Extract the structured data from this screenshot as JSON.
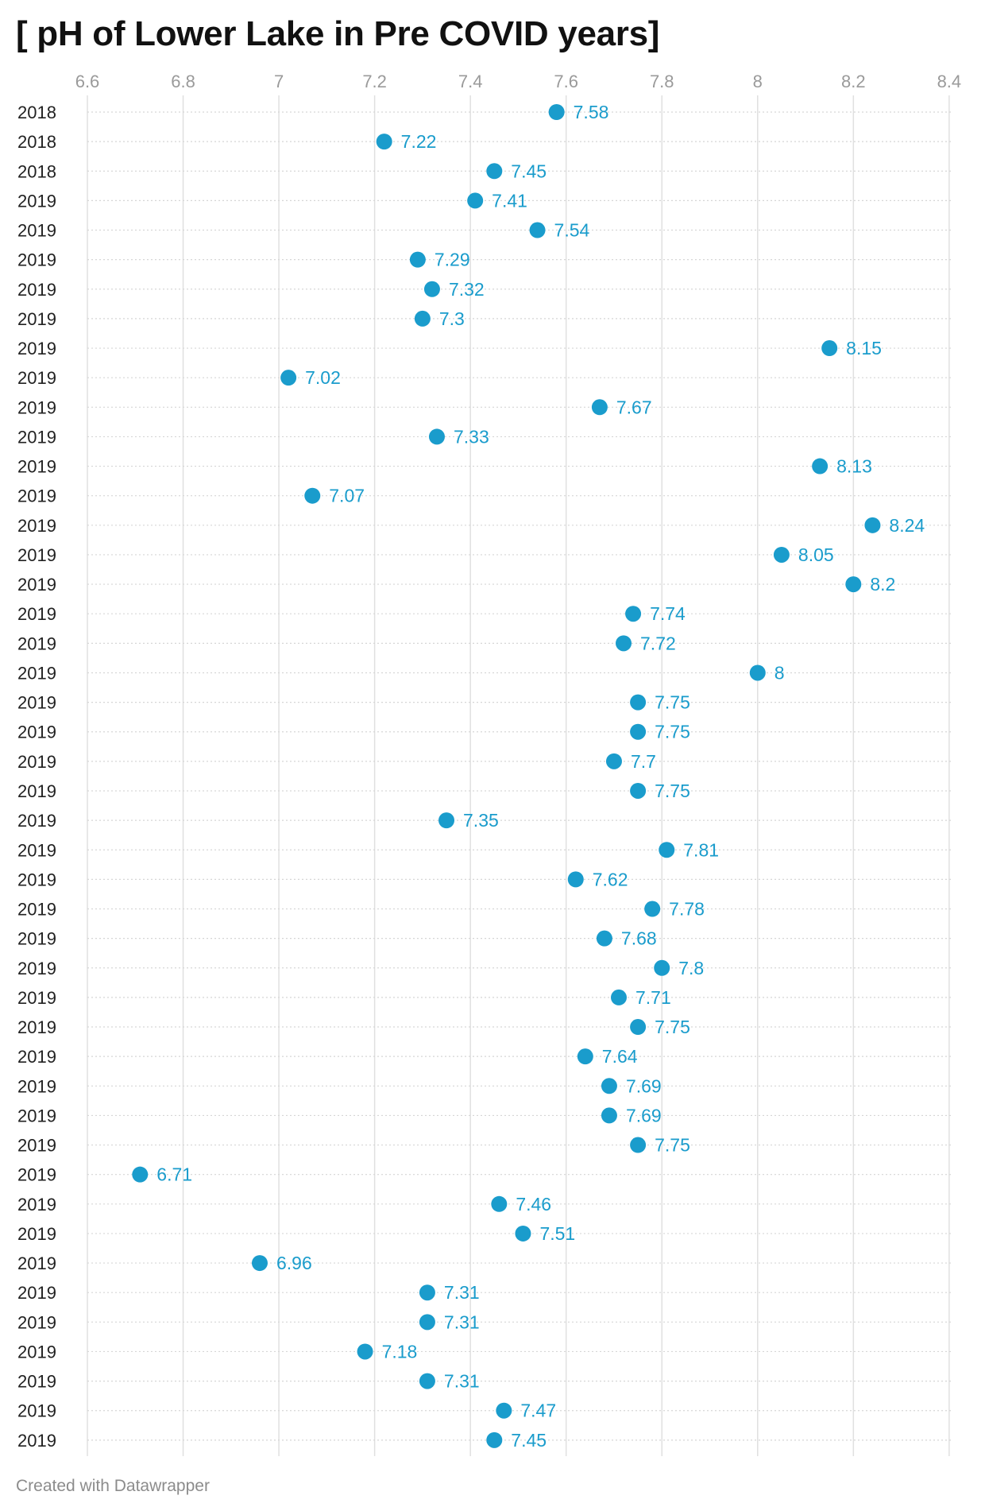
{
  "chart_data": {
    "type": "scatter",
    "title": "[ pH of Lower Lake in Pre COVID years]",
    "x_ticks": [
      6.6,
      6.8,
      7,
      7.2,
      7.4,
      7.6,
      7.8,
      8,
      8.2,
      8.4
    ],
    "x_tick_labels": [
      "6.6",
      "6.8",
      "7",
      "7.2",
      "7.4",
      "7.6",
      "7.8",
      "8",
      "8.2",
      "8.4"
    ],
    "xlim": [
      6.6,
      8.4
    ],
    "grid": true,
    "rows": [
      {
        "label": "2018",
        "value": 7.58,
        "value_label": "7.58"
      },
      {
        "label": "2018",
        "value": 7.22,
        "value_label": "7.22"
      },
      {
        "label": "2018",
        "value": 7.45,
        "value_label": "7.45"
      },
      {
        "label": "2019",
        "value": 7.41,
        "value_label": "7.41"
      },
      {
        "label": "2019",
        "value": 7.54,
        "value_label": "7.54"
      },
      {
        "label": "2019",
        "value": 7.29,
        "value_label": "7.29"
      },
      {
        "label": "2019",
        "value": 7.32,
        "value_label": "7.32"
      },
      {
        "label": "2019",
        "value": 7.3,
        "value_label": "7.3"
      },
      {
        "label": "2019",
        "value": 8.15,
        "value_label": "8.15"
      },
      {
        "label": "2019",
        "value": 7.02,
        "value_label": "7.02"
      },
      {
        "label": "2019",
        "value": 7.67,
        "value_label": "7.67"
      },
      {
        "label": "2019",
        "value": 7.33,
        "value_label": "7.33"
      },
      {
        "label": "2019",
        "value": 8.13,
        "value_label": "8.13"
      },
      {
        "label": "2019",
        "value": 7.07,
        "value_label": "7.07"
      },
      {
        "label": "2019",
        "value": 8.24,
        "value_label": "8.24"
      },
      {
        "label": "2019",
        "value": 8.05,
        "value_label": "8.05"
      },
      {
        "label": "2019",
        "value": 8.2,
        "value_label": "8.2"
      },
      {
        "label": "2019",
        "value": 7.74,
        "value_label": "7.74"
      },
      {
        "label": "2019",
        "value": 7.72,
        "value_label": "7.72"
      },
      {
        "label": "2019",
        "value": 8,
        "value_label": "8"
      },
      {
        "label": "2019",
        "value": 7.75,
        "value_label": "7.75"
      },
      {
        "label": "2019",
        "value": 7.75,
        "value_label": "7.75"
      },
      {
        "label": "2019",
        "value": 7.7,
        "value_label": "7.7"
      },
      {
        "label": "2019",
        "value": 7.75,
        "value_label": "7.75"
      },
      {
        "label": "2019",
        "value": 7.35,
        "value_label": "7.35"
      },
      {
        "label": "2019",
        "value": 7.81,
        "value_label": "7.81"
      },
      {
        "label": "2019",
        "value": 7.62,
        "value_label": "7.62"
      },
      {
        "label": "2019",
        "value": 7.78,
        "value_label": "7.78"
      },
      {
        "label": "2019",
        "value": 7.68,
        "value_label": "7.68"
      },
      {
        "label": "2019",
        "value": 7.8,
        "value_label": "7.8"
      },
      {
        "label": "2019",
        "value": 7.71,
        "value_label": "7.71"
      },
      {
        "label": "2019",
        "value": 7.75,
        "value_label": "7.75"
      },
      {
        "label": "2019",
        "value": 7.64,
        "value_label": "7.64"
      },
      {
        "label": "2019",
        "value": 7.69,
        "value_label": "7.69"
      },
      {
        "label": "2019",
        "value": 7.69,
        "value_label": "7.69"
      },
      {
        "label": "2019",
        "value": 7.75,
        "value_label": "7.75"
      },
      {
        "label": "2019",
        "value": 6.71,
        "value_label": "6.71"
      },
      {
        "label": "2019",
        "value": 7.46,
        "value_label": "7.46"
      },
      {
        "label": "2019",
        "value": 7.51,
        "value_label": "7.51"
      },
      {
        "label": "2019",
        "value": 6.96,
        "value_label": "6.96"
      },
      {
        "label": "2019",
        "value": 7.31,
        "value_label": "7.31"
      },
      {
        "label": "2019",
        "value": 7.31,
        "value_label": "7.31"
      },
      {
        "label": "2019",
        "value": 7.18,
        "value_label": "7.18"
      },
      {
        "label": "2019",
        "value": 7.31,
        "value_label": "7.31"
      },
      {
        "label": "2019",
        "value": 7.47,
        "value_label": "7.47"
      },
      {
        "label": "2019",
        "value": 7.45,
        "value_label": "7.45"
      }
    ]
  },
  "colors": {
    "dot": "#1a9ccc",
    "label": "#1a9ccc",
    "gridline": "#e0e0e0",
    "row_line": "#d6d6d6",
    "tick_text": "#9a9a9a",
    "row_text": "#222222"
  },
  "footer": "Created with Datawrapper"
}
